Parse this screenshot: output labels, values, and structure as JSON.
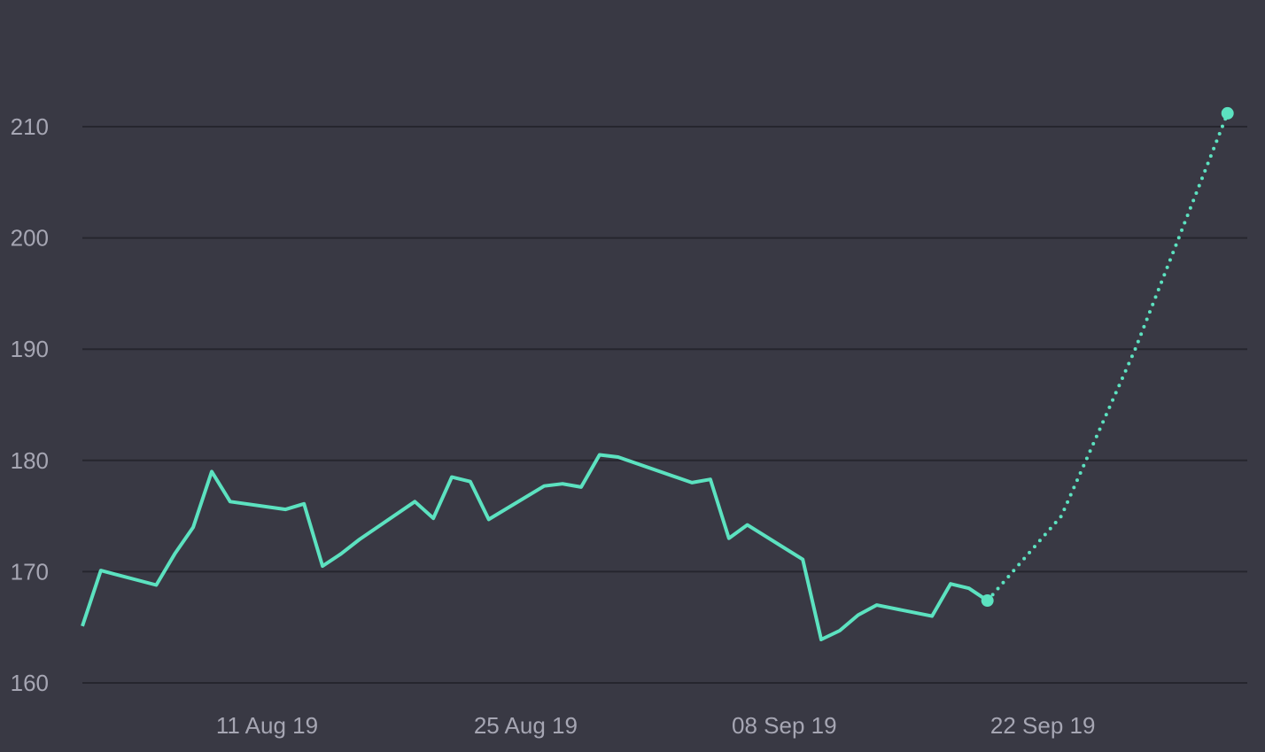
{
  "colors": {
    "background": "#393944",
    "line": "#5CE2C0",
    "grid": "#26262E",
    "tick_text": "#A6A6B3"
  },
  "chart_data": {
    "type": "line",
    "title": "",
    "xlabel": "",
    "ylabel": "",
    "ylim": [
      160,
      215
    ],
    "xlim": [
      "2019-08-01",
      "2019-10-02"
    ],
    "grid": true,
    "legend": "none",
    "y_ticks": [
      160,
      170,
      180,
      190,
      200,
      210
    ],
    "x_ticks": [
      {
        "date": "2019-08-11",
        "label": "11 Aug 19"
      },
      {
        "date": "2019-08-25",
        "label": "25 Aug 19"
      },
      {
        "date": "2019-09-08",
        "label": "08 Sep 19"
      },
      {
        "date": "2019-09-22",
        "label": "22 Sep 19"
      }
    ],
    "series": [
      {
        "style": "solid",
        "points": [
          {
            "x": "2019-08-01",
            "y": 165.1
          },
          {
            "x": "2019-08-02",
            "y": 170.1
          },
          {
            "x": "2019-08-05",
            "y": 168.8
          },
          {
            "x": "2019-08-06",
            "y": 171.6
          },
          {
            "x": "2019-08-07",
            "y": 174.0
          },
          {
            "x": "2019-08-08",
            "y": 179.0
          },
          {
            "x": "2019-08-09",
            "y": 176.3
          },
          {
            "x": "2019-08-12",
            "y": 175.6
          },
          {
            "x": "2019-08-13",
            "y": 176.1
          },
          {
            "x": "2019-08-14",
            "y": 170.5
          },
          {
            "x": "2019-08-15",
            "y": 171.6
          },
          {
            "x": "2019-08-16",
            "y": 172.9
          },
          {
            "x": "2019-08-19",
            "y": 176.3
          },
          {
            "x": "2019-08-20",
            "y": 174.8
          },
          {
            "x": "2019-08-21",
            "y": 178.5
          },
          {
            "x": "2019-08-22",
            "y": 178.1
          },
          {
            "x": "2019-08-23",
            "y": 174.7
          },
          {
            "x": "2019-08-26",
            "y": 177.7
          },
          {
            "x": "2019-08-27",
            "y": 177.9
          },
          {
            "x": "2019-08-28",
            "y": 177.6
          },
          {
            "x": "2019-08-29",
            "y": 180.5
          },
          {
            "x": "2019-08-30",
            "y": 180.3
          },
          {
            "x": "2019-09-03",
            "y": 178.0
          },
          {
            "x": "2019-09-04",
            "y": 178.3
          },
          {
            "x": "2019-09-05",
            "y": 173.0
          },
          {
            "x": "2019-09-06",
            "y": 174.2
          },
          {
            "x": "2019-09-09",
            "y": 171.1
          },
          {
            "x": "2019-09-10",
            "y": 163.9
          },
          {
            "x": "2019-09-11",
            "y": 164.7
          },
          {
            "x": "2019-09-12",
            "y": 166.1
          },
          {
            "x": "2019-09-13",
            "y": 167.0
          },
          {
            "x": "2019-09-16",
            "y": 166.0
          },
          {
            "x": "2019-09-17",
            "y": 168.9
          },
          {
            "x": "2019-09-18",
            "y": 168.5
          },
          {
            "x": "2019-09-19",
            "y": 167.4
          }
        ]
      },
      {
        "style": "dotted",
        "points": [
          {
            "x": "2019-09-19",
            "y": 167.4
          },
          {
            "x": "2019-09-23",
            "y": 175.0
          },
          {
            "x": "2019-09-27",
            "y": 190.0
          },
          {
            "x": "2019-10-02",
            "y": 211.2
          }
        ]
      }
    ]
  }
}
